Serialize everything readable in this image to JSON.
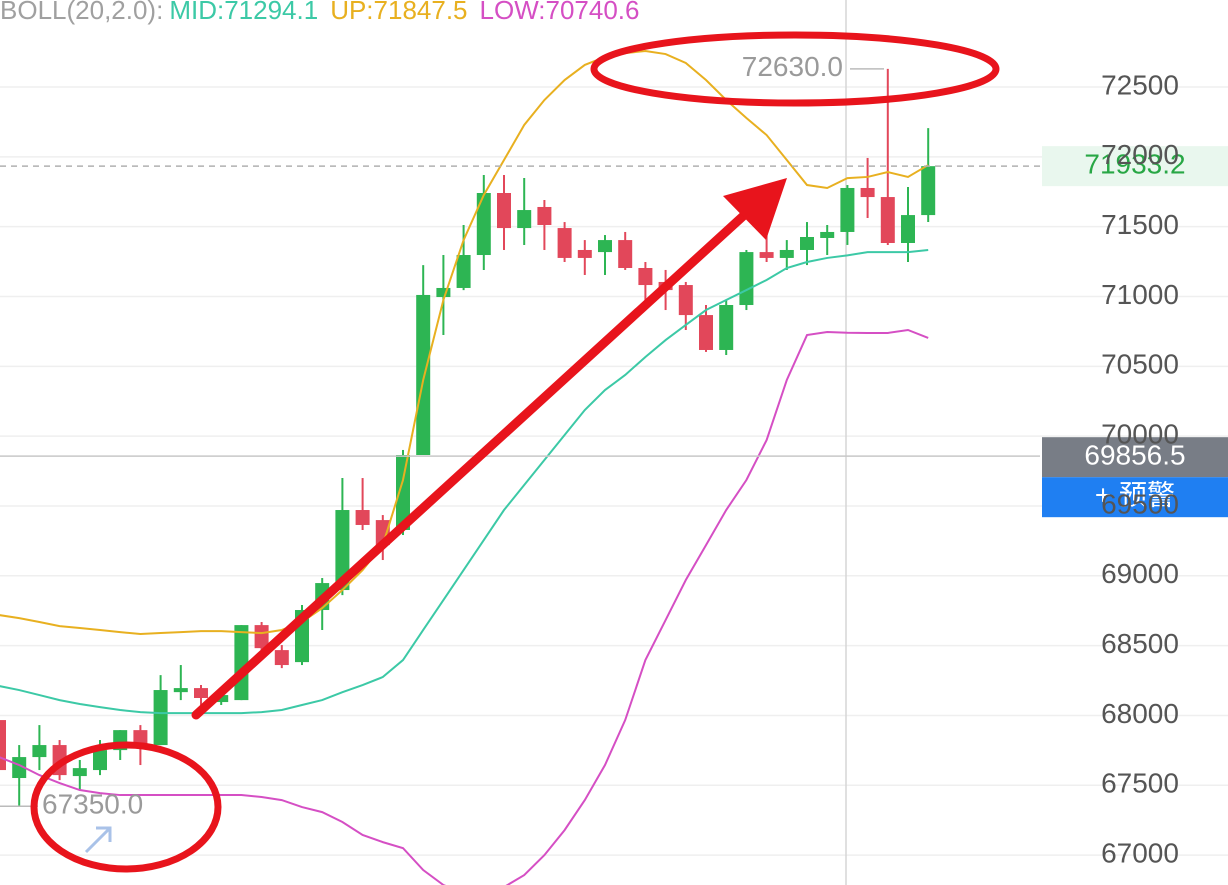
{
  "chart_data": {
    "type": "candlestick",
    "indicator_label": "BOLL(20,2.0):",
    "legend_labels": [
      "MID:71294.1",
      "UP:71847.5",
      "LOW:70740.6"
    ],
    "up_color": "#2db553",
    "down_color": "#e2475a",
    "open": [
      67967,
      67552,
      67702,
      67788,
      67566,
      67609,
      67752,
      67895,
      67788,
      68167,
      68196,
      68096,
      68110,
      68647,
      68468,
      68382,
      68755,
      68898,
      69471,
      69399,
      69328,
      69865,
      70996,
      71061,
      71297,
      71741,
      71490,
      71641,
      71490,
      71333,
      71318,
      71404,
      71204,
      71104,
      71082,
      70867,
      70617,
      70939,
      71318,
      71276,
      71333,
      71419,
      71462,
      71777,
      71712,
      71383,
      71583
    ],
    "high": [
      68003,
      67788,
      67931,
      67824,
      67681,
      67824,
      67895,
      67931,
      68289,
      68361,
      68218,
      68167,
      68647,
      68669,
      68504,
      68791,
      68984,
      69700,
      69700,
      69435,
      69901,
      71225,
      71297,
      71512,
      71870,
      71870,
      71848,
      71691,
      71533,
      71404,
      71440,
      71462,
      71247,
      71190,
      71104,
      70939,
      70975,
      71333,
      71583,
      71404,
      71533,
      71512,
      71798,
      71992,
      72630,
      71784,
      72206
    ],
    "low": [
      67394,
      67350,
      67609,
      67537,
      67466,
      67573,
      67681,
      67645,
      67788,
      68110,
      68075,
      68075,
      68110,
      68468,
      68339,
      68361,
      68612,
      68862,
      69328,
      69113,
      69292,
      69865,
      70724,
      71046,
      71190,
      71333,
      71369,
      71333,
      71247,
      71154,
      71154,
      71190,
      70939,
      70903,
      70760,
      70603,
      70581,
      70903,
      71247,
      71190,
      71225,
      71297,
      71369,
      71562,
      71369,
      71247,
      71533
    ],
    "close": [
      67609,
      67702,
      67788,
      67573,
      67623,
      67752,
      67895,
      67788,
      68182,
      68196,
      68125,
      68146,
      68647,
      68482,
      68361,
      68755,
      68948,
      69471,
      69364,
      69220,
      69865,
      71011,
      71061,
      71297,
      71741,
      71490,
      71619,
      71512,
      71276,
      71276,
      71404,
      71204,
      71082,
      71046,
      70867,
      70617,
      70939,
      71318,
      71276,
      71333,
      71426,
      71462,
      71777,
      71712,
      71383,
      71583,
      71933.2
    ],
    "series": [
      {
        "name": "MID",
        "color": "#3cc9a6",
        "values": [
          68211,
          68182,
          68146,
          68110,
          68082,
          68060,
          68039,
          68024,
          68017,
          68017,
          68017,
          68017,
          68017,
          68024,
          68039,
          68075,
          68110,
          68167,
          68218,
          68275,
          68397,
          68612,
          68826,
          69041,
          69256,
          69471,
          69650,
          69829,
          70008,
          70187,
          70330,
          70438,
          70567,
          70688,
          70796,
          70903,
          70975,
          71046,
          71118,
          71204,
          71247,
          71276,
          71294.1,
          71318,
          71318,
          71318,
          71333
        ]
      },
      {
        "name": "UP",
        "color": "#e8b020",
        "values": [
          68719,
          68697,
          68669,
          68640,
          68626,
          68612,
          68597,
          68583,
          68590,
          68597,
          68604,
          68604,
          68597,
          68590,
          68612,
          68669,
          68769,
          68898,
          69041,
          69220,
          69686,
          70402,
          70975,
          71404,
          71727,
          71977,
          72228,
          72407,
          72550,
          72658,
          72715,
          72743,
          72758,
          72736,
          72672,
          72550,
          72407,
          72278,
          72156,
          71977,
          71798,
          71777,
          71847.5,
          71856,
          71891,
          71856,
          71941
        ]
      },
      {
        "name": "LOW",
        "color": "#d54fc4",
        "values": [
          67702,
          67645,
          67573,
          67516,
          67466,
          67444,
          67430,
          67430,
          67430,
          67430,
          67430,
          67430,
          67430,
          67416,
          67394,
          67344,
          67308,
          67237,
          67144,
          67093,
          67050,
          66893,
          66786,
          66728,
          66728,
          66771,
          66857,
          67000,
          67179,
          67394,
          67645,
          67967,
          68397,
          68683,
          68970,
          69220,
          69471,
          69686,
          69972,
          70402,
          70724,
          70746,
          70740.6,
          70739,
          70739,
          70760,
          70703
        ]
      }
    ],
    "ylim": [
      66786,
      73123
    ],
    "yticks": [
      67000,
      67500,
      68000,
      68500,
      69000,
      69500,
      70000,
      70500,
      71000,
      71500,
      72000,
      72500
    ],
    "grid": true,
    "max_label": {
      "value": 72630,
      "label": "72630.0"
    },
    "min_label": {
      "value": 67350,
      "label": "67350.0"
    },
    "last_price": 71933.2,
    "crosshair_price": 69856.5,
    "alert_button": "+ 预警"
  }
}
